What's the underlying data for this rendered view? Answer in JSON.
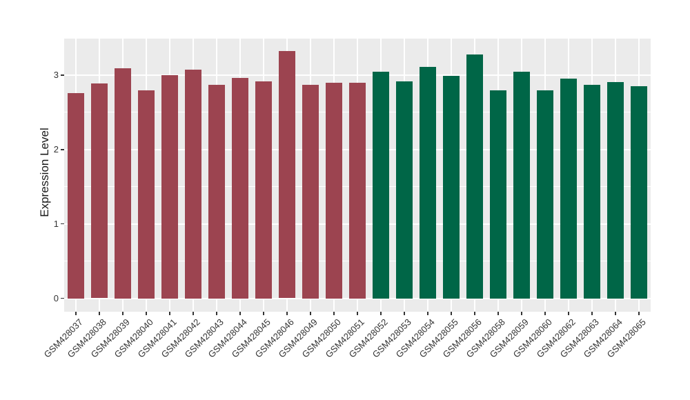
{
  "chart_data": {
    "type": "bar",
    "title": "",
    "xlabel": "",
    "ylabel": "Expression Level",
    "yticks": [
      0,
      1,
      2,
      3
    ],
    "minor_gridlines": [
      0.5,
      1.5,
      2.5
    ],
    "ylim": [
      -0.18,
      3.49
    ],
    "grid": true,
    "legend": false,
    "categories": [
      "GSM428037",
      "GSM428038",
      "GSM428039",
      "GSM428040",
      "GSM428041",
      "GSM428042",
      "GSM428043",
      "GSM428044",
      "GSM428045",
      "GSM428046",
      "GSM428049",
      "GSM428050",
      "GSM428051",
      "GSM428052",
      "GSM428053",
      "GSM428054",
      "GSM428055",
      "GSM428056",
      "GSM428058",
      "GSM428059",
      "GSM428060",
      "GSM428062",
      "GSM428063",
      "GSM428064",
      "GSM428065"
    ],
    "values": [
      2.76,
      2.89,
      3.09,
      2.8,
      3.0,
      3.07,
      2.87,
      2.96,
      2.92,
      3.32,
      2.87,
      2.9,
      2.9,
      3.05,
      2.92,
      3.11,
      2.99,
      3.28,
      2.8,
      3.05,
      2.8,
      2.95,
      2.87,
      2.91,
      2.85
    ],
    "bar_groups": [
      0,
      0,
      0,
      0,
      0,
      0,
      0,
      0,
      0,
      0,
      0,
      0,
      0,
      1,
      1,
      1,
      1,
      1,
      1,
      1,
      1,
      1,
      1,
      1,
      1
    ],
    "group_colors": [
      "#9C4450",
      "#006647"
    ],
    "style": {
      "panel_background": "#EBEBEB",
      "gridline_color": "#FFFFFF",
      "axis_text_color": "#333333",
      "axis_title_color": "#1A1A1A",
      "tick_color": "#333333",
      "page_background": "#FFFFFF"
    }
  }
}
